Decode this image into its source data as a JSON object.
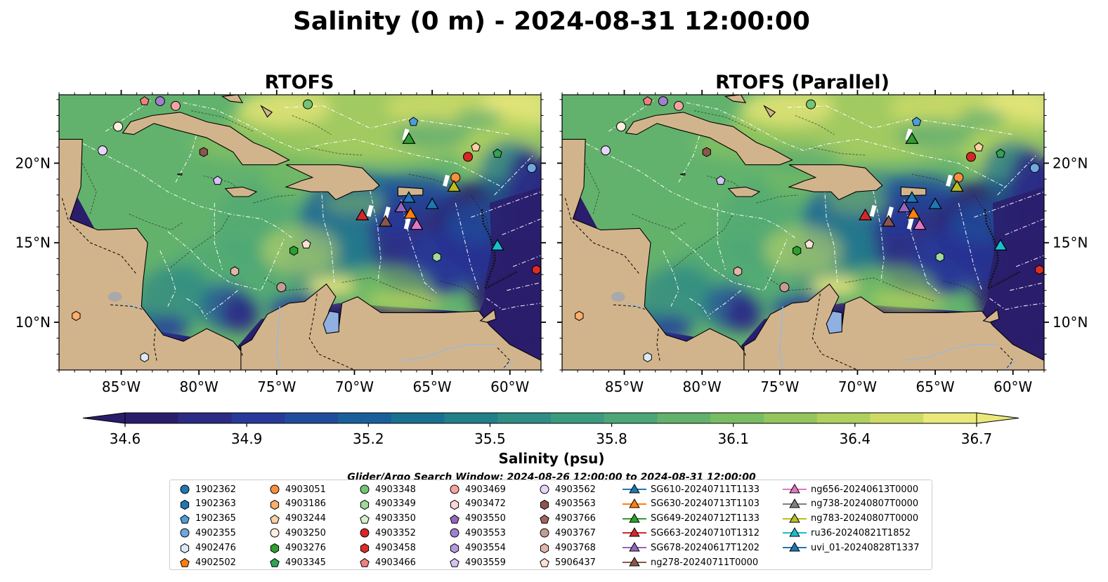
{
  "figure": {
    "title": "Salinity (0 m) - 2024-08-31 12:00:00",
    "search_window": "Glider/Argo Search Window: 2024-08-26 12:00:00 to 2024-08-31 12:00:00"
  },
  "chart_data": {
    "type": "heatmap",
    "panels": [
      {
        "title": "RTOFS"
      },
      {
        "title": "RTOFS (Parallel)"
      }
    ],
    "xlim": [
      -89.0,
      -58.0
    ],
    "ylim": [
      7.0,
      24.3
    ],
    "x_ticks": [
      -85,
      -80,
      -75,
      -70,
      -65,
      -60
    ],
    "x_tick_labels": [
      "85°W",
      "80°W",
      "75°W",
      "70°W",
      "65°W",
      "60°W"
    ],
    "y_ticks": [
      10,
      15,
      20
    ],
    "y_tick_labels": [
      "10°N",
      "15°N",
      "20°N"
    ],
    "colorbar": {
      "label": "Salinity (psu)",
      "min": 34.6,
      "max": 36.7,
      "ticks": [
        34.6,
        34.9,
        35.2,
        35.5,
        35.8,
        36.1,
        36.4,
        36.7
      ],
      "tick_labels": [
        "34.6",
        "34.9",
        "35.2",
        "35.5",
        "35.8",
        "36.1",
        "36.4",
        "36.7"
      ],
      "colors": [
        "#2a1d6b",
        "#2b2a85",
        "#27399a",
        "#1f4c9c",
        "#195f9a",
        "#1a7090",
        "#237f89",
        "#2f8d84",
        "#3c9a7e",
        "#4da677",
        "#62b26d",
        "#79bd62",
        "#93c65c",
        "#b0d05e",
        "#cddb66",
        "#ebe87a"
      ]
    },
    "land_color": "#d2b48c",
    "ocean_fresh_color": "#2a1d6b",
    "argo_floats": [
      {
        "id": "1902362",
        "marker": "circle",
        "color": "#1f77b4",
        "lon": null,
        "lat": null
      },
      {
        "id": "1902363",
        "marker": "hexagon",
        "color": "#1f77b4",
        "lon": null,
        "lat": null
      },
      {
        "id": "1902365",
        "marker": "pentagon",
        "color": "#4c9ed9",
        "lon": -66.2,
        "lat": 22.6
      },
      {
        "id": "4902355",
        "marker": "circle",
        "color": "#6fa8dc",
        "lon": -58.6,
        "lat": 19.7
      },
      {
        "id": "4902476",
        "marker": "hexagon",
        "color": "#dbe9f6",
        "lon": -83.5,
        "lat": 7.8
      },
      {
        "id": "4902502",
        "marker": "pentagon",
        "color": "#ff7f0e",
        "lon": null,
        "lat": null
      },
      {
        "id": "4903051",
        "marker": "circle",
        "color": "#fd8d3c",
        "lon": -63.5,
        "lat": 19.1
      },
      {
        "id": "4903186",
        "marker": "hexagon",
        "color": "#fdae6b",
        "lon": -87.9,
        "lat": 10.4
      },
      {
        "id": "4903244",
        "marker": "pentagon",
        "color": "#fdd0a2",
        "lon": -62.2,
        "lat": 21.0
      },
      {
        "id": "4903250",
        "marker": "circle",
        "color": "#feeddb",
        "lon": -85.2,
        "lat": 22.3
      },
      {
        "id": "4903276",
        "marker": "hexagon",
        "color": "#2ca02c",
        "lon": -73.9,
        "lat": 14.5
      },
      {
        "id": "4903345",
        "marker": "pentagon",
        "color": "#31a354",
        "lon": -60.8,
        "lat": 20.6
      },
      {
        "id": "4903348",
        "marker": "circle",
        "color": "#74c476",
        "lon": -73.0,
        "lat": 23.7
      },
      {
        "id": "4903349",
        "marker": "hexagon",
        "color": "#a1d99b",
        "lon": -64.7,
        "lat": 14.1
      },
      {
        "id": "4903350",
        "marker": "pentagon",
        "color": "#d4f0cd",
        "lon": null,
        "lat": null
      },
      {
        "id": "4903352",
        "marker": "circle",
        "color": "#d62728",
        "lon": -62.7,
        "lat": 20.4
      },
      {
        "id": "4903458",
        "marker": "hexagon",
        "color": "#de2d26",
        "lon": -58.3,
        "lat": 13.3
      },
      {
        "id": "4903466",
        "marker": "pentagon",
        "color": "#f08080",
        "lon": -83.5,
        "lat": 23.9
      },
      {
        "id": "4903469",
        "marker": "circle",
        "color": "#f4a3a3",
        "lon": -81.5,
        "lat": 23.6
      },
      {
        "id": "4903472",
        "marker": "hexagon",
        "color": "#fcd5d5",
        "lon": null,
        "lat": null
      },
      {
        "id": "4903550",
        "marker": "pentagon",
        "color": "#9467bd",
        "lon": null,
        "lat": null
      },
      {
        "id": "4903553",
        "marker": "circle",
        "color": "#a17fcf",
        "lon": -82.5,
        "lat": 23.9
      },
      {
        "id": "4903554",
        "marker": "hexagon",
        "color": "#b49ae0",
        "lon": null,
        "lat": null
      },
      {
        "id": "4903559",
        "marker": "pentagon",
        "color": "#d4c2f2",
        "lon": -78.8,
        "lat": 18.9
      },
      {
        "id": "4903562",
        "marker": "circle",
        "color": "#e7d4fa",
        "lon": -86.2,
        "lat": 20.8
      },
      {
        "id": "4903563",
        "marker": "hexagon",
        "color": "#8c564b",
        "lon": -79.7,
        "lat": 20.7
      },
      {
        "id": "4903766",
        "marker": "pentagon",
        "color": "#a0685a",
        "lon": null,
        "lat": null
      },
      {
        "id": "4903767",
        "marker": "circle",
        "color": "#c49c94",
        "lon": -74.7,
        "lat": 12.2
      },
      {
        "id": "4903768",
        "marker": "hexagon",
        "color": "#e3b5a6",
        "lon": -77.7,
        "lat": 13.2
      },
      {
        "id": "5906437",
        "marker": "pentagon",
        "color": "#fde1d8",
        "lon": -73.1,
        "lat": 14.9
      }
    ],
    "gliders": [
      {
        "id": "SG610-20240711T1133",
        "color": "#1f77b4",
        "lon": -66.5,
        "lat": 17.8
      },
      {
        "id": "SG630-20240713T1103",
        "color": "#ff7f0e",
        "lon": -66.4,
        "lat": 16.8
      },
      {
        "id": "SG649-20240712T1133",
        "color": "#2ca02c",
        "lon": -66.5,
        "lat": 21.5
      },
      {
        "id": "SG663-20240710T1312",
        "color": "#d62728",
        "lon": -69.5,
        "lat": 16.7
      },
      {
        "id": "SG678-20240617T1202",
        "color": "#9467bd",
        "lon": -67.0,
        "lat": 17.2
      },
      {
        "id": "ng278-20240711T0000",
        "color": "#8c564b",
        "lon": -68.0,
        "lat": 16.3
      },
      {
        "id": "ng656-20240613T0000",
        "color": "#e377c2",
        "lon": -66.0,
        "lat": 16.1
      },
      {
        "id": "ng738-20240807T0000",
        "color": "#7f7f7f",
        "lon": null,
        "lat": null
      },
      {
        "id": "ng783-20240807T0000",
        "color": "#bcbd22",
        "lon": -63.6,
        "lat": 18.5
      },
      {
        "id": "ru36-20240821T1852",
        "color": "#17becf",
        "lon": -60.8,
        "lat": 14.8
      },
      {
        "id": "uvi_01-20240828T1337",
        "color": "#1f77b4",
        "lon": -65.0,
        "lat": 17.4
      }
    ]
  }
}
